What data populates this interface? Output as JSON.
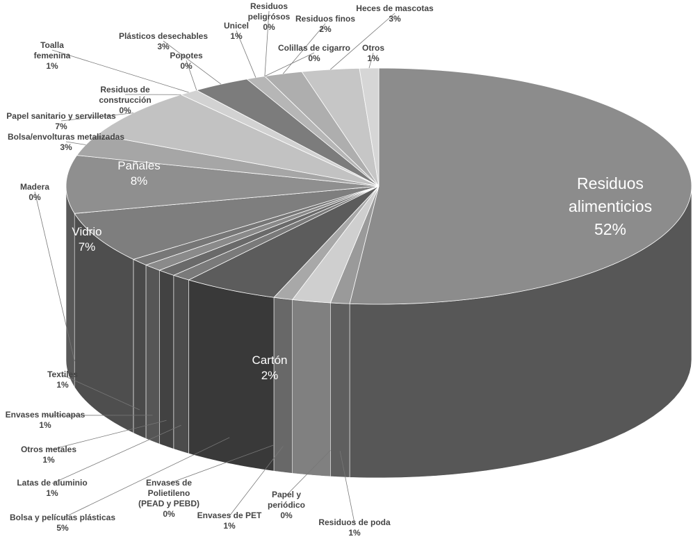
{
  "chart_data": {
    "type": "pie3d",
    "categories": [
      "Residuos alimenticios",
      "Residuos de poda",
      "Papel y periódico",
      "Cartón",
      "Envases de PET",
      "Envases de Polietileno (PEAD y PEBD)",
      "Bolsa y películas plásticas",
      "Latas de aluminio",
      "Otros metales",
      "Envases multicapas",
      "Textiles",
      "Vidrio",
      "Madera",
      "Pañales",
      "Bolsa/envolturas metalizadas",
      "Papel sanitario y servilletas",
      "Residuos de construcción",
      "Toalla femenina",
      "Popotes",
      "Plásticos desechables",
      "Unicel",
      "Residuos peligrósos",
      "Colillas de cigarro",
      "Residuos finos",
      "Heces de mascotas",
      "Otros"
    ],
    "values": [
      52,
      1,
      0,
      2,
      1,
      0,
      5,
      1,
      1,
      1,
      1,
      7,
      0,
      8,
      3,
      7,
      0,
      1,
      0,
      3,
      1,
      0,
      0,
      2,
      3,
      1
    ],
    "value_labels": [
      "52%",
      "1%",
      "0%",
      "2%",
      "1%",
      "0%",
      "5%",
      "1%",
      "1%",
      "1%",
      "1%",
      "7%",
      "0%",
      "8%",
      "3%",
      "7%",
      "0%",
      "1%",
      "0%",
      "3%",
      "1%",
      "0%",
      "0%",
      "2%",
      "3%",
      "1%"
    ],
    "colors": [
      "#8c8c8c",
      "#9a9a9a",
      "#bdbdbd",
      "#cfcfcf",
      "#a8a8a8",
      "#b8b8b8",
      "#5c5c5c",
      "#7a7a7a",
      "#6a6a6a",
      "#8a8a8a",
      "#777777",
      "#7e7e7e",
      "#9c9c9c",
      "#8f8f8f",
      "#a6a6a6",
      "#c2c2c2",
      "#b0b0b0",
      "#d2d2d2",
      "#c8c8c8",
      "#7c7c7c",
      "#b6b6b6",
      "#a0a0a0",
      "#909090",
      "#aeaeae",
      "#c6c6c6",
      "#d6d6d6"
    ]
  }
}
